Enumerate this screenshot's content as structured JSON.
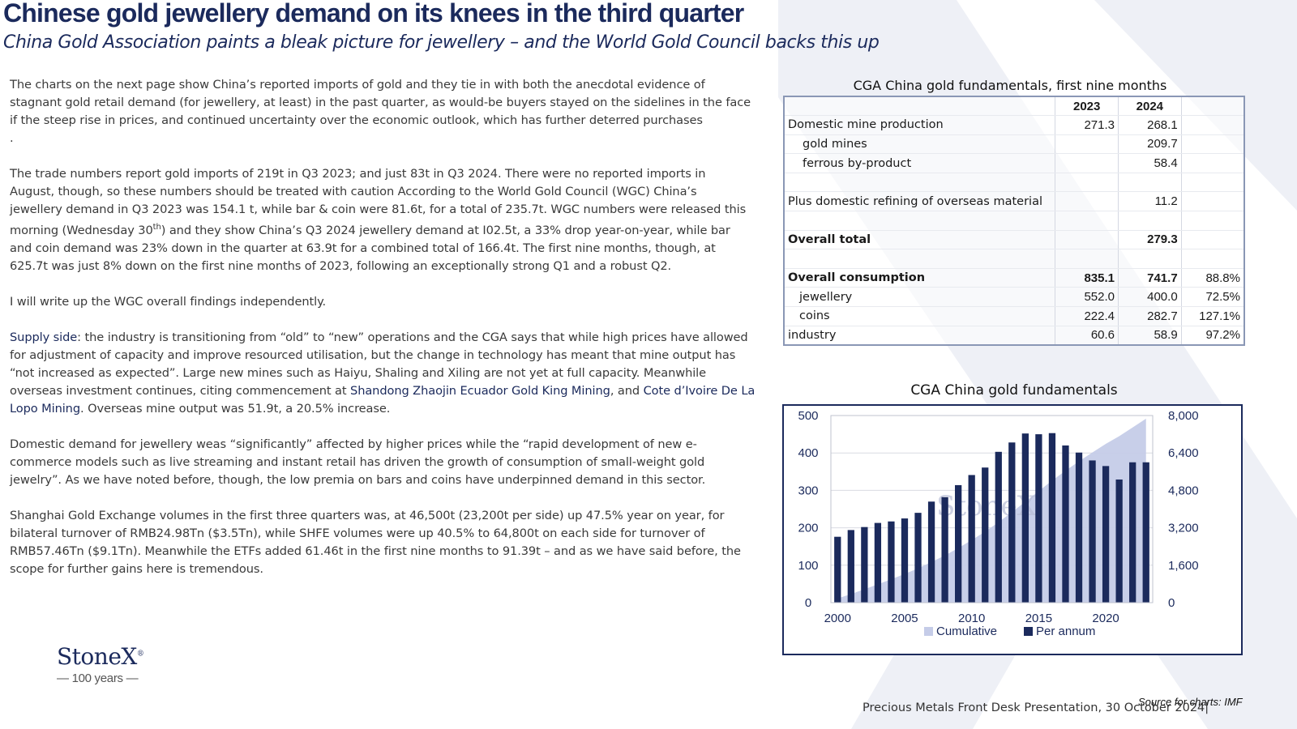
{
  "header": {
    "title": "Chinese gold jewellery demand on its knees in the third quarter",
    "subtitle": "China Gold Association paints a bleak picture for jewellery – and the World Gold Council backs this up"
  },
  "body": {
    "p1": [
      "The charts on the next page show China’s reported imports of gold and they tie in with both the anecdotal evidence of",
      "stagnant gold retail demand (for jewellery, at least) in the past quarter, as would-be buyers stayed on the sidelines in the face",
      "if the steep rise in prices, and continued uncertainty over the economic outlook, which has further deterred purchases",
      "."
    ],
    "p2_l1": "The trade numbers report gold imports of 219t in Q3 2023; and just 83t in Q3 2024.  There were no reported imports in",
    "p2_l2": "August, though, so these numbers should be treated with caution  According to the World Gold Council (WGC) China’s",
    "p2_l3": "jewellery demand in Q3 2023 was 154.1 t, while bar & coin were 81.6t, for a total of 235.7t.  WGC numbers were released this",
    "p2_l4a": "morning (Wednesday 30",
    "p2_l4sup": "th",
    "p2_l4b": ") and they show China’s Q3 2024 jewellery demand at I02.5t, a 33% drop year-on-year, while bar",
    "p2_l5": "and coin demand was 23% down in the quarter at 63.9t for a combined total of 166.4t.  The first nine months, though, at",
    "p2_l6": "625.7t was just 8% down on the first nine months of 2023, following an exceptionally strong Q1 and a robust Q2.",
    "p3": "I will write up the WGC overall findings independently.",
    "p4_label": "Supply side",
    "p4_l1": ": the industry is transitioning from “old” to “new” operations and the CGA says that while high prices have allowed",
    "p4_l2": "for adjustment of capacity and improve resourced utilisation, but the change in technology has meant that mine output has",
    "p4_l3": "“not increased as expected”.   Large new mines such as Haiyu, Shaling and Xiling are not yet at full capacity. Meanwhile",
    "p4_l4a": "overseas investment continues, citing commencement at ",
    "p4_l4link": "Shandong Zhaojin Ecuador Gold King Mining",
    "p4_l4b": ", and ",
    "p4_l4link2": "Cote d’Ivoire De La",
    "p4_l5link": "Lopo Mining",
    "p4_l5b": ".  Overseas mine output was 51.9t, a 20.5% increase.",
    "p5": [
      "Domestic demand for jewellery weas “significantly” affected by higher prices while the “rapid development of new e-",
      "commerce models such as live streaming and instant retail has driven the growth of consumption of small-weight gold",
      "jewelry”.   As we have noted before, though, the low premia on bars and coins have underpinned demand in this sector."
    ],
    "p6": [
      "Shanghai Gold Exchange volumes in the first three quarters was, at 46,500t (23,200t per side) up 47.5% year on year, for",
      "bilateral turnover of RMB24.98Tn ($3.5Tn), while SHFE volumes were up 40.5% to 64,800t on each side for turnover of",
      "RMB57.46Tn ($9.1Tn).  Meanwhile the ETFs added 61.46t in the first nine months to 91.39t – and as we have said before, the",
      "scope for further gains here is tremendous."
    ]
  },
  "table": {
    "title": "CGA China gold fundamentals, first nine months",
    "headers": [
      "",
      "2023",
      "2024",
      ""
    ],
    "rows": [
      [
        "Domestic mine production",
        "271.3",
        "268.1",
        ""
      ],
      [
        "gold mines",
        "",
        "209.7",
        ""
      ],
      [
        "ferrous by-product",
        "",
        "58.4",
        ""
      ],
      [
        "",
        "",
        "",
        ""
      ],
      [
        "Plus domestic refining of overseas material",
        "",
        "11.2",
        ""
      ],
      [
        "",
        "",
        "",
        ""
      ],
      [
        "Overall total",
        "",
        "279.3",
        ""
      ],
      [
        "",
        "",
        "",
        ""
      ],
      [
        "Overall consumption",
        "835.1",
        "741.7",
        "88.8%"
      ],
      [
        "jewellery",
        "552.0",
        "400.0",
        "72.5%"
      ],
      [
        "coins",
        "222.4",
        "282.7",
        "127.1%"
      ],
      [
        "industry",
        "60.6",
        "58.9",
        "97.2%"
      ]
    ]
  },
  "chart_data": {
    "type": "bar",
    "title": "CGA China gold fundamentals",
    "x": [
      2000,
      2001,
      2002,
      2003,
      2004,
      2005,
      2006,
      2007,
      2008,
      2009,
      2010,
      2011,
      2012,
      2013,
      2014,
      2015,
      2016,
      2017,
      2018,
      2019,
      2020,
      2021,
      2022,
      2023
    ],
    "x_ticks": [
      "2000",
      "2005",
      "2010",
      "2015",
      "2020"
    ],
    "series": [
      {
        "name": "Per annum",
        "type": "bar",
        "axis": "left",
        "color": "#1b2a5c",
        "values": [
          176,
          194,
          202,
          213,
          217,
          225,
          240,
          270,
          282,
          314,
          341,
          361,
          403,
          428,
          452,
          450,
          453,
          420,
          401,
          380,
          365,
          329,
          375,
          375
        ]
      },
      {
        "name": "Cumulative",
        "type": "area",
        "axis": "right",
        "color": "#c5cce8",
        "values": [
          176,
          370,
          572,
          785,
          1002,
          1227,
          1467,
          1737,
          2019,
          2333,
          2674,
          3035,
          3438,
          3866,
          4318,
          4768,
          5221,
          5641,
          6042,
          6422,
          6787,
          7116,
          7491,
          7866
        ]
      }
    ],
    "y_left": {
      "range": [
        0,
        500
      ],
      "ticks": [
        "0",
        "100",
        "200",
        "300",
        "400",
        "500"
      ]
    },
    "y_right": {
      "range": [
        0,
        8000
      ],
      "ticks": [
        "0",
        "1,600",
        "3,200",
        "4,800",
        "6,400",
        "8,000"
      ]
    },
    "legend": [
      "Cumulative",
      "Per annum"
    ],
    "legend_position": "bottom",
    "grid": true,
    "watermark_text": "StoneX"
  },
  "logo": {
    "name": "StoneX",
    "registered": "®",
    "years": "— 100 years —"
  },
  "source": "Source for charts: IMF",
  "footer": "Precious Metals Front Desk Presentation, 30 October 2024|",
  "colors": {
    "navy": "#1b2a5c",
    "area": "#c5cce8",
    "watermark": "#eef0f6"
  }
}
